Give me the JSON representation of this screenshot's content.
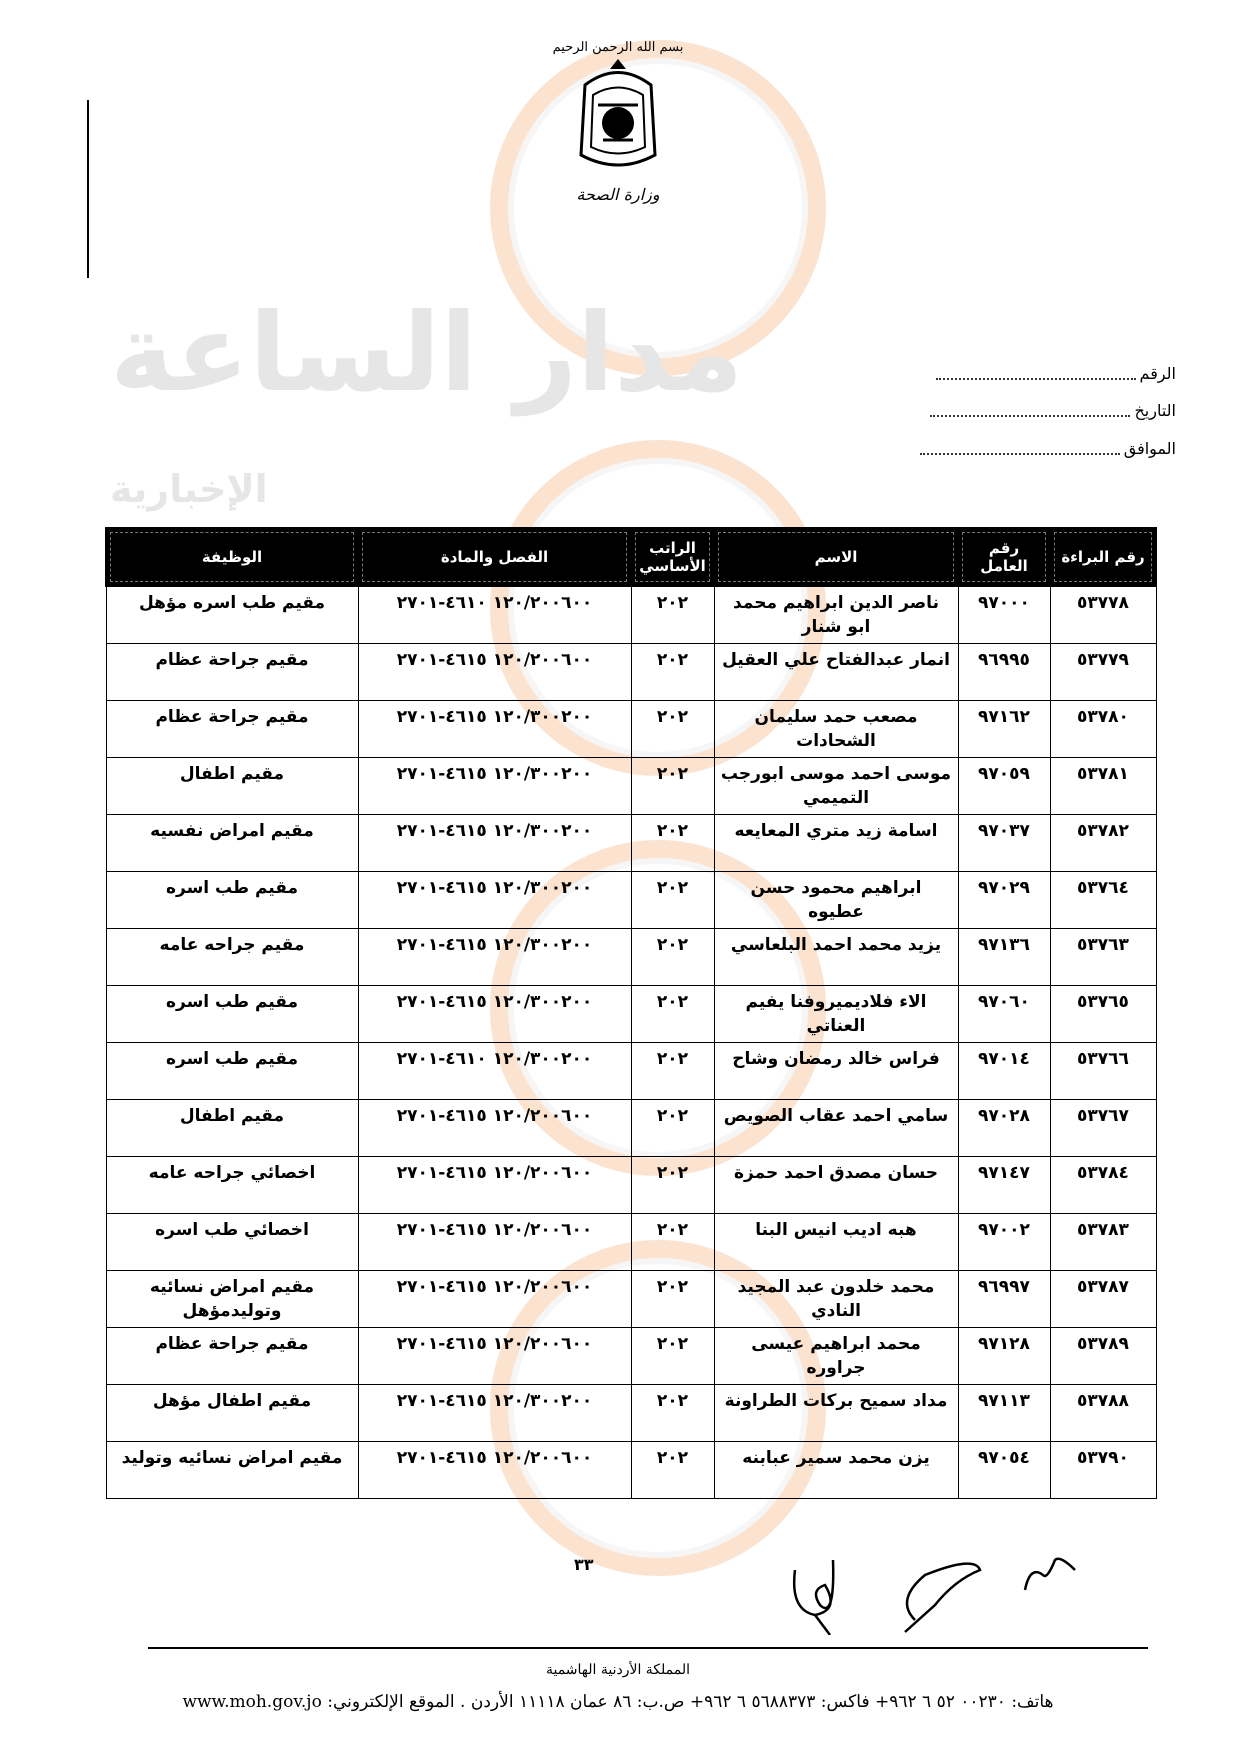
{
  "letterhead": {
    "basmala": "بسم الله الرحمن الرحيم",
    "ministry": "وزارة الصحة"
  },
  "watermark": {
    "brand": "مدار الساعة",
    "subtitle": "الإخبارية"
  },
  "fields": [
    {
      "label": "الرقم"
    },
    {
      "label": "التاريخ"
    },
    {
      "label": "الموافق"
    }
  ],
  "table": {
    "headers": [
      "رقم البراءة",
      "رقم العامل",
      "الاسم",
      "الراتب الأساسي",
      "الفصل والمادة",
      "الوظيفة"
    ],
    "rows": [
      {
        "id": "٥٣٧٧٨",
        "worker": "٩٧٠٠٠",
        "name": "ناصر الدين ابراهيم محمد ابو شنار",
        "salary": "٢٠٢",
        "code": "١٢٠/٢٠٠٦٠٠ ٤٦١٠-٢٧٠١",
        "job": "مقيم طب اسره مؤهل"
      },
      {
        "id": "٥٣٧٧٩",
        "worker": "٩٦٩٩٥",
        "name": "انمار عبدالفتاح علي العقيل",
        "salary": "٢٠٢",
        "code": "١٢٠/٢٠٠٦٠٠ ٤٦١٥-٢٧٠١",
        "job": "مقيم جراحة عظام"
      },
      {
        "id": "٥٣٧٨٠",
        "worker": "٩٧١٦٢",
        "name": "مصعب حمد سليمان الشحادات",
        "salary": "٢٠٢",
        "code": "١٢٠/٣٠٠٢٠٠ ٤٦١٥-٢٧٠١",
        "job": "مقيم جراحة عظام"
      },
      {
        "id": "٥٣٧٨١",
        "worker": "٩٧٠٥٩",
        "name": "موسى احمد موسى ابورجب التميمي",
        "salary": "٢٠٢",
        "code": "١٢٠/٣٠٠٢٠٠ ٤٦١٥-٢٧٠١",
        "job": "مقيم اطفال"
      },
      {
        "id": "٥٣٧٨٢",
        "worker": "٩٧٠٣٧",
        "name": "اسامة زيد متري المعايعه",
        "salary": "٢٠٢",
        "code": "١٢٠/٣٠٠٢٠٠ ٤٦١٥-٢٧٠١",
        "job": "مقيم امراض نفسيه"
      },
      {
        "id": "٥٣٧٦٤",
        "worker": "٩٧٠٢٩",
        "name": "ابراهيم محمود حسن عطيوه",
        "salary": "٢٠٢",
        "code": "١٢٠/٣٠٠٢٠٠ ٤٦١٥-٢٧٠١",
        "job": "مقيم طب اسره"
      },
      {
        "id": "٥٣٧٦٣",
        "worker": "٩٧١٣٦",
        "name": "يزيد محمد احمد البلعاسي",
        "salary": "٢٠٢",
        "code": "١٢٠/٣٠٠٢٠٠ ٤٦١٥-٢٧٠١",
        "job": "مقيم جراحه عامه"
      },
      {
        "id": "٥٣٧٦٥",
        "worker": "٩٧٠٦٠",
        "name": "الاء فلاديميروفنا يفيم العناتي",
        "salary": "٢٠٢",
        "code": "١٢٠/٣٠٠٢٠٠ ٤٦١٥-٢٧٠١",
        "job": "مقيم طب اسره"
      },
      {
        "id": "٥٣٧٦٦",
        "worker": "٩٧٠١٤",
        "name": "فراس خالد رمضان وشاح",
        "salary": "٢٠٢",
        "code": "١٢٠/٣٠٠٢٠٠ ٤٦١٠-٢٧٠١",
        "job": "مقيم طب اسره"
      },
      {
        "id": "٥٣٧٦٧",
        "worker": "٩٧٠٢٨",
        "name": "سامي احمد عقاب الصويص",
        "salary": "٢٠٢",
        "code": "١٢٠/٢٠٠٦٠٠ ٤٦١٥-٢٧٠١",
        "job": "مقيم اطفال"
      },
      {
        "id": "٥٣٧٨٤",
        "worker": "٩٧١٤٧",
        "name": "حسان مصدق احمد حمزة",
        "salary": "٢٠٢",
        "code": "١٢٠/٢٠٠٦٠٠ ٤٦١٥-٢٧٠١",
        "job": "اخصائي جراحه عامه"
      },
      {
        "id": "٥٣٧٨٣",
        "worker": "٩٧٠٠٢",
        "name": "هبه اديب انيس البنا",
        "salary": "٢٠٢",
        "code": "١٢٠/٢٠٠٦٠٠ ٤٦١٥-٢٧٠١",
        "job": "اخصائي طب اسره"
      },
      {
        "id": "٥٣٧٨٧",
        "worker": "٩٦٩٩٧",
        "name": "محمد خلدون عبد المجيد النادي",
        "salary": "٢٠٢",
        "code": "١٢٠/٢٠٠٦٠٠ ٤٦١٥-٢٧٠١",
        "job": "مقيم امراض نسائيه وتوليدمؤهل"
      },
      {
        "id": "٥٣٧٨٩",
        "worker": "٩٧١٢٨",
        "name": "محمد ابراهيم عيسى جراوره",
        "salary": "٢٠٢",
        "code": "١٢٠/٢٠٠٦٠٠ ٤٦١٥-٢٧٠١",
        "job": "مقيم جراحة عظام"
      },
      {
        "id": "٥٣٧٨٨",
        "worker": "٩٧١١٣",
        "name": "مداد سميح بركات الطراونة",
        "salary": "٢٠٢",
        "code": "١٢٠/٣٠٠٢٠٠ ٤٦١٥-٢٧٠١",
        "job": "مقيم اطفال مؤهل"
      },
      {
        "id": "٥٣٧٩٠",
        "worker": "٩٧٠٥٤",
        "name": "يزن محمد سمير عبابنه",
        "salary": "٢٠٢",
        "code": "١٢٠/٢٠٠٦٠٠ ٤٦١٥-٢٧٠١",
        "job": "مقيم امراض نسائيه وتوليد"
      }
    ]
  },
  "page_number": "٣٣",
  "footer": {
    "country": "المملكة الأردنية الهاشمية",
    "contact": "هاتف: ٠٠٢٣٠ ٥٢ ٦ ٩٦٢+ فاكس: ٥٦٨٨٣٧٣ ٦ ٩٦٢+ ص.ب: ٨٦ عمان ١١١١٨ الأردن . الموقع الإلكتروني: www.moh.gov.jo"
  }
}
